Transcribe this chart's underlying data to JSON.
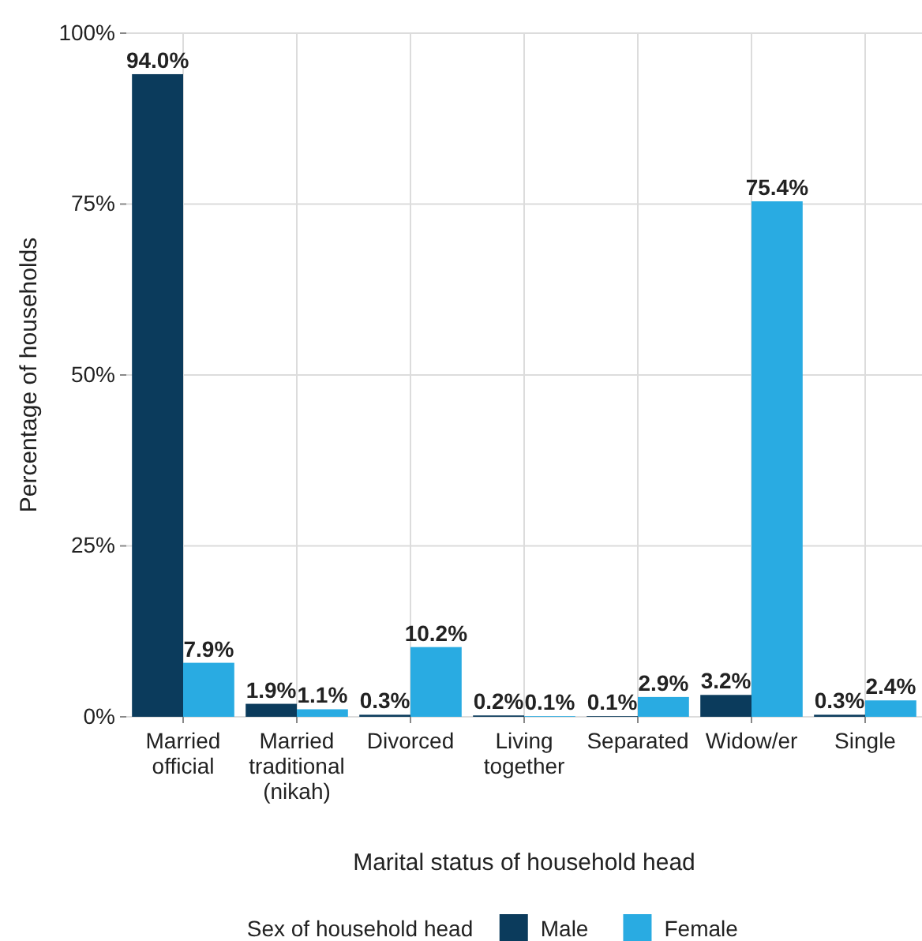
{
  "chart_data": {
    "type": "bar",
    "xlabel": "Marital status of household head",
    "ylabel": "Percentage of households",
    "legend_title": "Sex of household head",
    "categories": [
      "Married official",
      "Married traditional (nikah)",
      "Divorced",
      "Living together",
      "Separated",
      "Widow/er",
      "Single"
    ],
    "series": [
      {
        "name": "Male",
        "color": "#0b3b5c",
        "values": [
          94.0,
          1.9,
          0.3,
          0.2,
          0.1,
          3.2,
          0.3
        ],
        "value_labels": [
          "94.0%",
          "1.9%",
          "0.3%",
          "0.2%",
          "0.1%",
          "3.2%",
          "0.3%"
        ]
      },
      {
        "name": "Female",
        "color": "#29abe2",
        "values": [
          7.9,
          1.1,
          10.2,
          0.1,
          2.9,
          75.4,
          2.4
        ],
        "value_labels": [
          "7.9%",
          "1.1%",
          "10.2%",
          "0.1%",
          "2.9%",
          "75.4%",
          "2.4%"
        ]
      }
    ],
    "ylim": [
      0,
      100
    ],
    "yticks": [
      {
        "value": 0,
        "label": "0%"
      },
      {
        "value": 25,
        "label": "25%"
      },
      {
        "value": 50,
        "label": "50%"
      },
      {
        "value": 75,
        "label": "75%"
      },
      {
        "value": 100,
        "label": "100%"
      }
    ],
    "grid": true,
    "legend": "bottom"
  }
}
